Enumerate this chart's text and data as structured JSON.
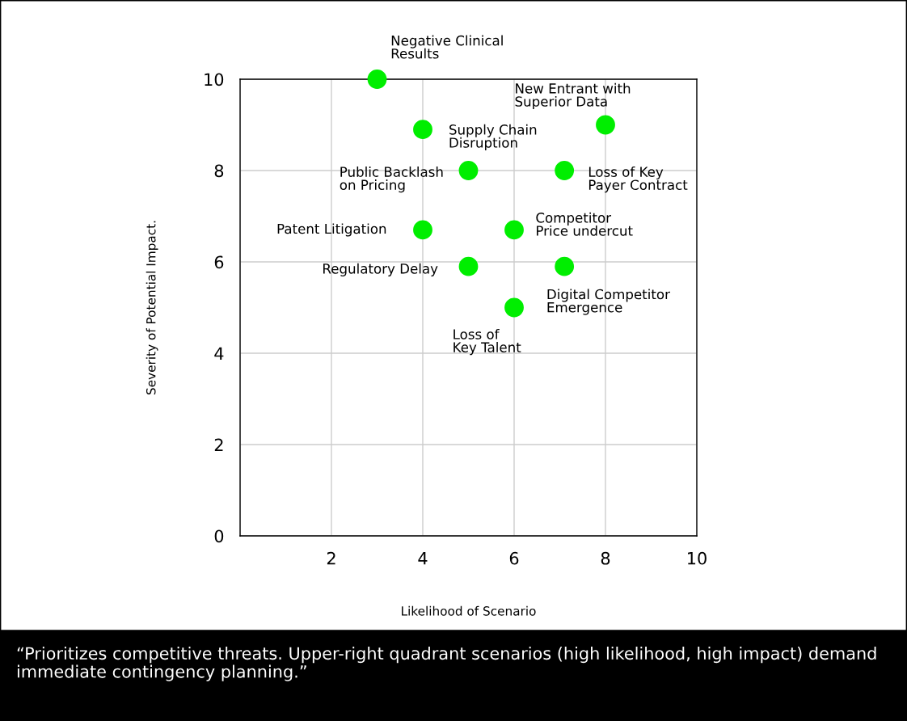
{
  "chart_data": {
    "type": "scatter",
    "xlabel": "Likelihood of Scenario",
    "ylabel": "Severity of Potential Impact.",
    "xlim": [
      0,
      10
    ],
    "xticks": [
      {
        "value": 0,
        "label": null
      },
      2,
      4,
      6,
      8,
      10
    ],
    "ylim": [
      0,
      10
    ],
    "yticks": [
      0,
      2,
      4,
      6,
      8,
      10
    ],
    "grid": true,
    "marker": "circle",
    "series": [
      {
        "color": "#00ee00",
        "x": [
          3,
          8,
          4,
          5,
          7.1,
          4,
          6,
          5,
          7.1,
          6
        ],
        "values": [
          10,
          9,
          8.9,
          8,
          8,
          6.7,
          6.7,
          5.9,
          5.9,
          5
        ]
      }
    ],
    "annotations": [
      {
        "text": "Negative Clinical\nResults",
        "x": 3,
        "y": 10
      },
      {
        "text": "New Entrant with\nSuperior Data",
        "x": 8,
        "y": 9
      },
      {
        "text": "Supply Chain\nDisruption",
        "x": 4,
        "y": 8.9
      },
      {
        "text": "Public Backlash\non Pricing",
        "x": 5,
        "y": 8
      },
      {
        "text": "Loss of Key\nPayer Contract",
        "x": 7.1,
        "y": 8
      },
      {
        "text": "Patent Litigation",
        "x": 4,
        "y": 6.7
      },
      {
        "text": "Competitor\nPrice undercut",
        "x": 6,
        "y": 6.7
      },
      {
        "text": "Regulatory Delay",
        "x": 5,
        "y": 5.9
      },
      {
        "text": "Digital Competitor\nEmergence",
        "x": 7.1,
        "y": 5.9
      },
      {
        "text": "Loss of\nKey Talent",
        "x": 6,
        "y": 5
      },
      "“Prioritizes competitive threats. Upper-right quadrant scenarios (high likelihood, high impact) demand immediate contingency planning.”"
    ]
  }
}
